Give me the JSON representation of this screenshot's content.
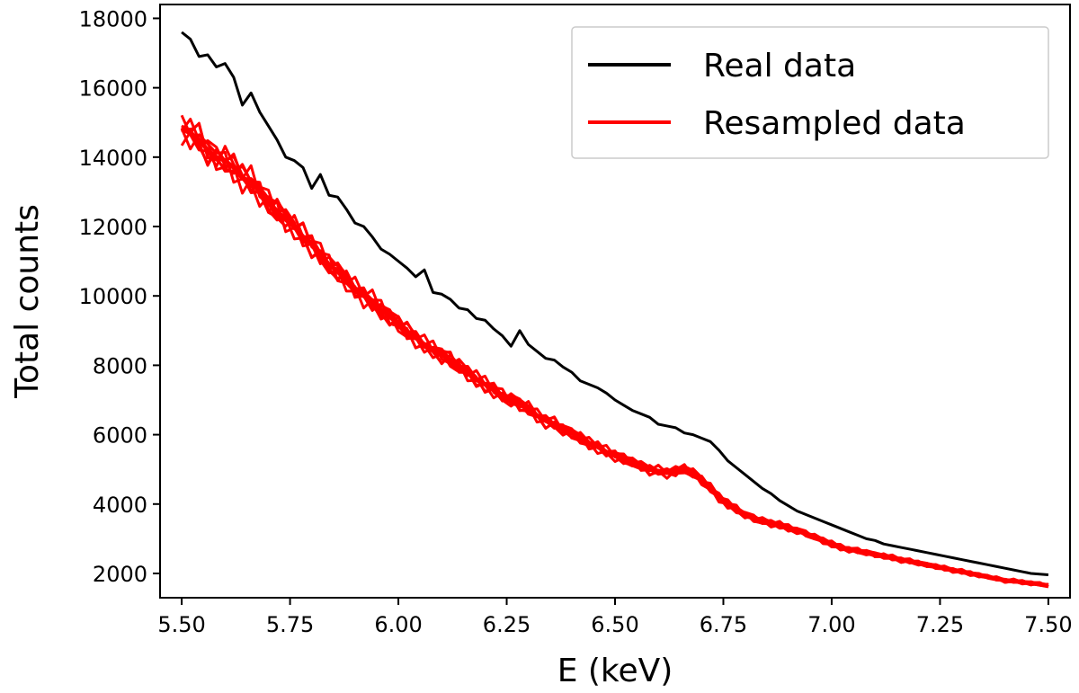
{
  "chart_data": {
    "type": "line",
    "title": "",
    "xlabel": "E (keV)",
    "ylabel": "Total counts",
    "xlim": [
      5.45,
      7.55
    ],
    "ylim": [
      1300,
      18400
    ],
    "xticks": [
      5.5,
      5.75,
      6.0,
      6.25,
      6.5,
      6.75,
      7.0,
      7.25,
      7.5
    ],
    "xtick_labels": [
      "5.50",
      "5.75",
      "6.00",
      "6.25",
      "6.50",
      "6.75",
      "7.00",
      "7.25",
      "7.50"
    ],
    "yticks": [
      2000,
      4000,
      6000,
      8000,
      10000,
      12000,
      14000,
      16000,
      18000
    ],
    "ytick_labels": [
      "2000",
      "4000",
      "6000",
      "8000",
      "10000",
      "12000",
      "14000",
      "16000",
      "18000"
    ],
    "grid": false,
    "legend_position": "top-right",
    "series": [
      {
        "name": "Real data",
        "color": "#000000",
        "x": [
          5.5,
          5.52,
          5.54,
          5.56,
          5.58,
          5.6,
          5.62,
          5.64,
          5.66,
          5.68,
          5.7,
          5.72,
          5.74,
          5.76,
          5.78,
          5.8,
          5.82,
          5.84,
          5.86,
          5.88,
          5.9,
          5.92,
          5.94,
          5.96,
          5.98,
          6.0,
          6.02,
          6.04,
          6.06,
          6.08,
          6.1,
          6.12,
          6.14,
          6.16,
          6.18,
          6.2,
          6.22,
          6.24,
          6.26,
          6.28,
          6.3,
          6.32,
          6.34,
          6.36,
          6.38,
          6.4,
          6.42,
          6.44,
          6.46,
          6.48,
          6.5,
          6.52,
          6.54,
          6.56,
          6.58,
          6.6,
          6.62,
          6.64,
          6.66,
          6.68,
          6.7,
          6.72,
          6.74,
          6.76,
          6.78,
          6.8,
          6.82,
          6.84,
          6.86,
          6.88,
          6.9,
          6.92,
          6.94,
          6.96,
          6.98,
          7.0,
          7.02,
          7.04,
          7.06,
          7.08,
          7.1,
          7.12,
          7.14,
          7.16,
          7.18,
          7.2,
          7.22,
          7.24,
          7.26,
          7.28,
          7.3,
          7.32,
          7.34,
          7.36,
          7.38,
          7.4,
          7.42,
          7.44,
          7.46,
          7.48,
          7.5
        ],
        "values": [
          17600,
          17400,
          16900,
          16950,
          16600,
          16700,
          16300,
          15500,
          15850,
          15300,
          14900,
          14500,
          14000,
          13900,
          13700,
          13100,
          13500,
          12900,
          12850,
          12500,
          12100,
          12000,
          11700,
          11350,
          11200,
          11000,
          10800,
          10550,
          10750,
          10100,
          10050,
          9900,
          9650,
          9600,
          9350,
          9300,
          9050,
          8850,
          8550,
          9000,
          8600,
          8400,
          8200,
          8150,
          7950,
          7800,
          7550,
          7450,
          7350,
          7200,
          7000,
          6850,
          6700,
          6600,
          6500,
          6300,
          6250,
          6200,
          6050,
          6000,
          5900,
          5800,
          5550,
          5250,
          5050,
          4850,
          4650,
          4450,
          4300,
          4100,
          3950,
          3800,
          3700,
          3600,
          3500,
          3400,
          3300,
          3200,
          3100,
          3000,
          2950,
          2850,
          2800,
          2750,
          2700,
          2650,
          2600,
          2550,
          2500,
          2450,
          2400,
          2350,
          2300,
          2250,
          2200,
          2150,
          2100,
          2050,
          2000,
          1980,
          1960
        ]
      },
      {
        "name": "Resampled data",
        "color": "#ff0000",
        "x": [
          5.5,
          5.52,
          5.54,
          5.56,
          5.58,
          5.6,
          5.62,
          5.64,
          5.66,
          5.68,
          5.7,
          5.72,
          5.74,
          5.76,
          5.78,
          5.8,
          5.82,
          5.84,
          5.86,
          5.88,
          5.9,
          5.92,
          5.94,
          5.96,
          5.98,
          6.0,
          6.02,
          6.04,
          6.06,
          6.08,
          6.1,
          6.12,
          6.14,
          6.16,
          6.18,
          6.2,
          6.22,
          6.24,
          6.26,
          6.28,
          6.3,
          6.32,
          6.34,
          6.36,
          6.38,
          6.4,
          6.42,
          6.44,
          6.46,
          6.48,
          6.5,
          6.52,
          6.54,
          6.56,
          6.58,
          6.6,
          6.62,
          6.64,
          6.66,
          6.68,
          6.7,
          6.72,
          6.74,
          6.76,
          6.78,
          6.8,
          6.82,
          6.84,
          6.86,
          6.88,
          6.9,
          6.92,
          6.94,
          6.96,
          6.98,
          7.0,
          7.02,
          7.04,
          7.06,
          7.08,
          7.1,
          7.12,
          7.14,
          7.16,
          7.18,
          7.2,
          7.22,
          7.24,
          7.26,
          7.28,
          7.3,
          7.32,
          7.34,
          7.36,
          7.38,
          7.4,
          7.42,
          7.44,
          7.46,
          7.48,
          7.5
        ],
        "values": [
          14800,
          14700,
          14500,
          14200,
          14000,
          13900,
          13700,
          13400,
          13300,
          13000,
          12700,
          12450,
          12200,
          12000,
          11700,
          11500,
          11200,
          10900,
          10700,
          10450,
          10200,
          10000,
          9850,
          9600,
          9400,
          9200,
          8950,
          8800,
          8600,
          8450,
          8300,
          8150,
          7950,
          7800,
          7600,
          7450,
          7300,
          7100,
          7000,
          6900,
          6750,
          6550,
          6400,
          6300,
          6150,
          6050,
          5900,
          5750,
          5650,
          5500,
          5400,
          5300,
          5200,
          5100,
          5000,
          4950,
          4900,
          4950,
          5000,
          4900,
          4700,
          4450,
          4200,
          4000,
          3850,
          3700,
          3600,
          3500,
          3450,
          3400,
          3300,
          3250,
          3150,
          3050,
          2950,
          2850,
          2750,
          2700,
          2650,
          2600,
          2550,
          2500,
          2450,
          2400,
          2350,
          2300,
          2250,
          2200,
          2150,
          2100,
          2050,
          2000,
          1950,
          1900,
          1850,
          1800,
          1780,
          1750,
          1720,
          1690,
          1650
        ]
      }
    ]
  }
}
